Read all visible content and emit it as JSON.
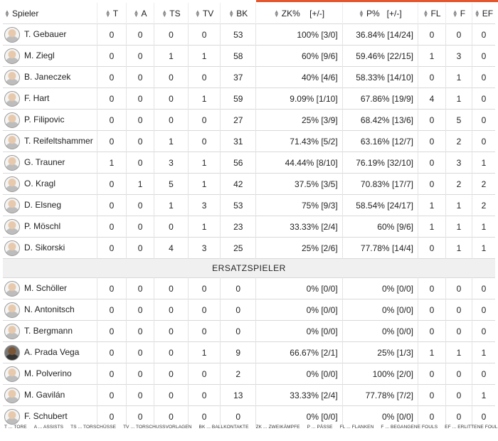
{
  "headers": [
    "Spieler",
    "T",
    "A",
    "TS",
    "TV",
    "BK",
    "ZK%",
    "[+/-]",
    "P%",
    "[+/-]",
    "FL",
    "F",
    "EF"
  ],
  "starters": [
    {
      "name": "T. Gebauer",
      "t": "0",
      "a": "0",
      "ts": "0",
      "tv": "0",
      "bk": "53",
      "zk": "100% [3/0]",
      "p": "36.84% [14/24]",
      "fl": "0",
      "f": "0",
      "ef": "0"
    },
    {
      "name": "M. Ziegl",
      "t": "0",
      "a": "0",
      "ts": "1",
      "tv": "1",
      "bk": "58",
      "zk": "60% [9/6]",
      "p": "59.46% [22/15]",
      "fl": "1",
      "f": "3",
      "ef": "0"
    },
    {
      "name": "B. Janeczek",
      "t": "0",
      "a": "0",
      "ts": "0",
      "tv": "0",
      "bk": "37",
      "zk": "40% [4/6]",
      "p": "58.33% [14/10]",
      "fl": "0",
      "f": "1",
      "ef": "0"
    },
    {
      "name": "F. Hart",
      "t": "0",
      "a": "0",
      "ts": "0",
      "tv": "1",
      "bk": "59",
      "zk": "9.09% [1/10]",
      "p": "67.86% [19/9]",
      "fl": "4",
      "f": "1",
      "ef": "0"
    },
    {
      "name": "P. Filipovic",
      "t": "0",
      "a": "0",
      "ts": "0",
      "tv": "0",
      "bk": "27",
      "zk": "25% [3/9]",
      "p": "68.42% [13/6]",
      "fl": "0",
      "f": "5",
      "ef": "0"
    },
    {
      "name": "T. Reifeltshammer",
      "t": "0",
      "a": "0",
      "ts": "1",
      "tv": "0",
      "bk": "31",
      "zk": "71.43% [5/2]",
      "p": "63.16% [12/7]",
      "fl": "0",
      "f": "2",
      "ef": "0"
    },
    {
      "name": "G. Trauner",
      "t": "1",
      "a": "0",
      "ts": "3",
      "tv": "1",
      "bk": "56",
      "zk": "44.44% [8/10]",
      "p": "76.19% [32/10]",
      "fl": "0",
      "f": "3",
      "ef": "1"
    },
    {
      "name": "O. Kragl",
      "t": "0",
      "a": "1",
      "ts": "5",
      "tv": "1",
      "bk": "42",
      "zk": "37.5% [3/5]",
      "p": "70.83% [17/7]",
      "fl": "0",
      "f": "2",
      "ef": "2"
    },
    {
      "name": "D. Elsneg",
      "t": "0",
      "a": "0",
      "ts": "1",
      "tv": "3",
      "bk": "53",
      "zk": "75% [9/3]",
      "p": "58.54% [24/17]",
      "fl": "1",
      "f": "1",
      "ef": "2"
    },
    {
      "name": "P. Möschl",
      "t": "0",
      "a": "0",
      "ts": "0",
      "tv": "1",
      "bk": "23",
      "zk": "33.33% [2/4]",
      "p": "60% [9/6]",
      "fl": "1",
      "f": "1",
      "ef": "1"
    },
    {
      "name": "D. Sikorski",
      "t": "0",
      "a": "0",
      "ts": "4",
      "tv": "3",
      "bk": "25",
      "zk": "25% [2/6]",
      "p": "77.78% [14/4]",
      "fl": "0",
      "f": "1",
      "ef": "1"
    }
  ],
  "subs_label": "ERSATZSPIELER",
  "subs": [
    {
      "name": "M. Schöller",
      "t": "0",
      "a": "0",
      "ts": "0",
      "tv": "0",
      "bk": "0",
      "zk": "0% [0/0]",
      "p": "0% [0/0]",
      "fl": "0",
      "f": "0",
      "ef": "0"
    },
    {
      "name": "N. Antonitsch",
      "t": "0",
      "a": "0",
      "ts": "0",
      "tv": "0",
      "bk": "0",
      "zk": "0% [0/0]",
      "p": "0% [0/0]",
      "fl": "0",
      "f": "0",
      "ef": "0"
    },
    {
      "name": "T. Bergmann",
      "t": "0",
      "a": "0",
      "ts": "0",
      "tv": "0",
      "bk": "0",
      "zk": "0% [0/0]",
      "p": "0% [0/0]",
      "fl": "0",
      "f": "0",
      "ef": "0"
    },
    {
      "name": "A. Prada Vega",
      "t": "0",
      "a": "0",
      "ts": "0",
      "tv": "1",
      "bk": "9",
      "zk": "66.67% [2/1]",
      "p": "25% [1/3]",
      "fl": "1",
      "f": "1",
      "ef": "1",
      "dark": true
    },
    {
      "name": "M. Polverino",
      "t": "0",
      "a": "0",
      "ts": "0",
      "tv": "0",
      "bk": "2",
      "zk": "0% [0/0]",
      "p": "100% [2/0]",
      "fl": "0",
      "f": "0",
      "ef": "0"
    },
    {
      "name": "M. Gavilán",
      "t": "0",
      "a": "0",
      "ts": "0",
      "tv": "0",
      "bk": "13",
      "zk": "33.33% [2/4]",
      "p": "77.78% [7/2]",
      "fl": "0",
      "f": "0",
      "ef": "1"
    },
    {
      "name": "F. Schubert",
      "t": "0",
      "a": "0",
      "ts": "0",
      "tv": "0",
      "bk": "0",
      "zk": "0% [0/0]",
      "p": "0% [0/0]",
      "fl": "0",
      "f": "0",
      "ef": "0"
    }
  ],
  "legend": [
    "T ... TORE",
    "A ... ASSISTS",
    "TS ... TORSCHÜSSE",
    "TV ... TORSCHUSSVORLAGEN",
    "BK ... BALLKONTAKTE",
    "ZK ... ZWEIKÄMPFE",
    "P ... PÄSSE",
    "FL ... FLANKEN",
    "F ... BEGANGENE FOULS",
    "EF ... ERLITTENE FOULS"
  ],
  "colors": {
    "accent": "#e4572e"
  }
}
